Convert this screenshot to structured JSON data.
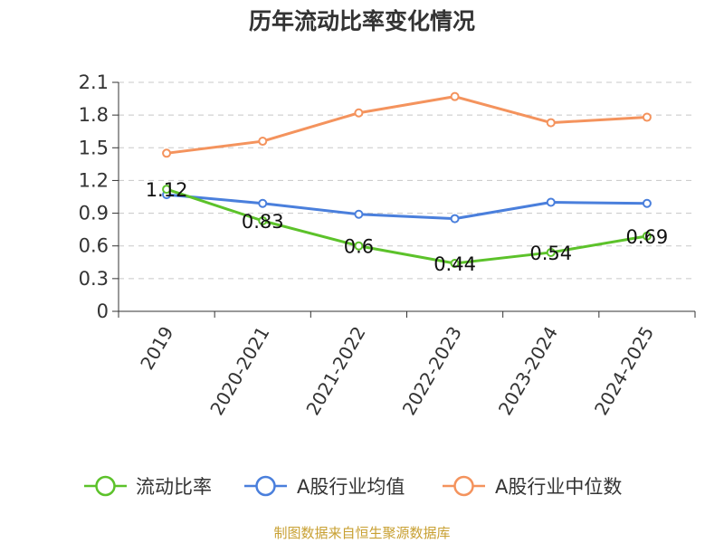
{
  "chart_data": {
    "type": "line",
    "title": "历年流动比率变化情况",
    "categories": [
      "2019",
      "2020-2021",
      "2021-2022",
      "2022-2023",
      "2023-2024",
      "2024-2025"
    ],
    "ylim": [
      0,
      2.1
    ],
    "yticks": [
      "0",
      "0.3",
      "0.6",
      "0.9",
      "1.2",
      "1.5",
      "1.8",
      "2.1"
    ],
    "grid": true,
    "legend_position": "bottom",
    "series": [
      {
        "name": "流动比率",
        "color": "#5cc22a",
        "values": [
          1.12,
          0.83,
          0.6,
          0.44,
          0.54,
          0.69
        ],
        "labels": [
          "1.12",
          "0.83",
          "0.6",
          "0.44",
          "0.54",
          "0.69"
        ]
      },
      {
        "name": "A股行业均值",
        "color": "#4a7fdc",
        "values": [
          1.07,
          0.99,
          0.89,
          0.85,
          1.0,
          0.99
        ]
      },
      {
        "name": "A股行业中位数",
        "color": "#f4935d",
        "values": [
          1.45,
          1.56,
          1.82,
          1.97,
          1.73,
          1.78
        ]
      }
    ]
  },
  "footer": {
    "source": "制图数据来自恒生聚源数据库"
  }
}
